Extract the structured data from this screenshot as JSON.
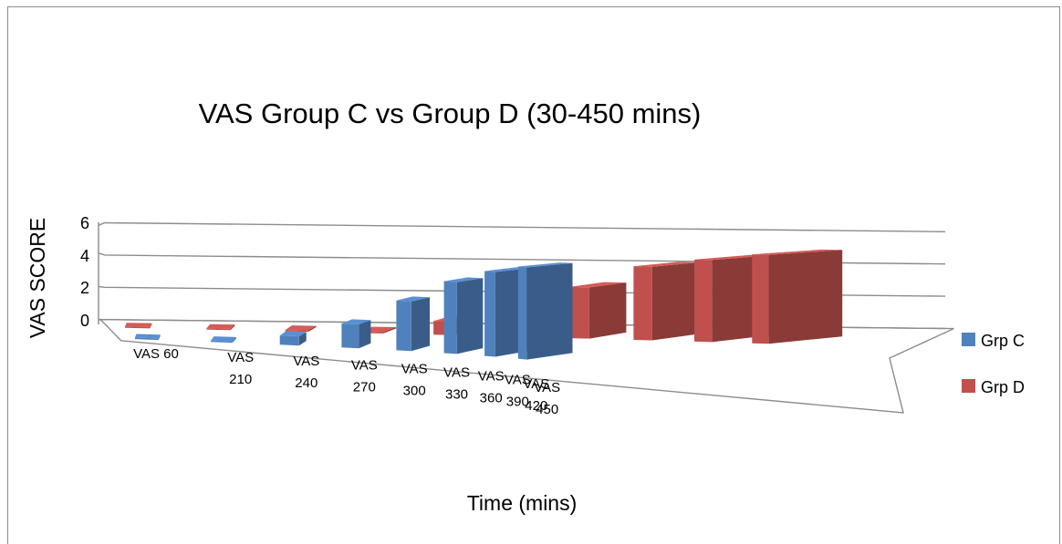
{
  "chart_data": {
    "type": "bar",
    "title": "VAS Group C vs Group D (30-450 mins)",
    "xlabel": "Time (mins)",
    "ylabel": "VAS SCORE",
    "ylim": [
      0,
      6
    ],
    "yticks": [
      "0",
      "2",
      "4",
      "6"
    ],
    "grid": true,
    "legend_position": "right",
    "categories": [
      [
        "VAS 60"
      ],
      [
        "VAS",
        "210"
      ],
      [
        "VAS",
        "240"
      ],
      [
        "VAS",
        "270"
      ],
      [
        "VAS",
        "300"
      ],
      [
        "VAS",
        "330"
      ],
      [
        "VAS",
        "360"
      ],
      [
        "VAS",
        "390"
      ],
      [
        "VAS",
        "420"
      ],
      [
        "VAS",
        "450"
      ]
    ],
    "series": [
      {
        "name": "Grp C",
        "color": "#4f81bd",
        "values": [
          0,
          0,
          0.5,
          1.3,
          2.7,
          3.9,
          4.6,
          5.0,
          0,
          0
        ]
      },
      {
        "name": "Grp D",
        "color": "#c0504d",
        "values": [
          0,
          0,
          0,
          0,
          0.8,
          1.8,
          3.0,
          4.3,
          4.8,
          5.2
        ]
      }
    ]
  }
}
